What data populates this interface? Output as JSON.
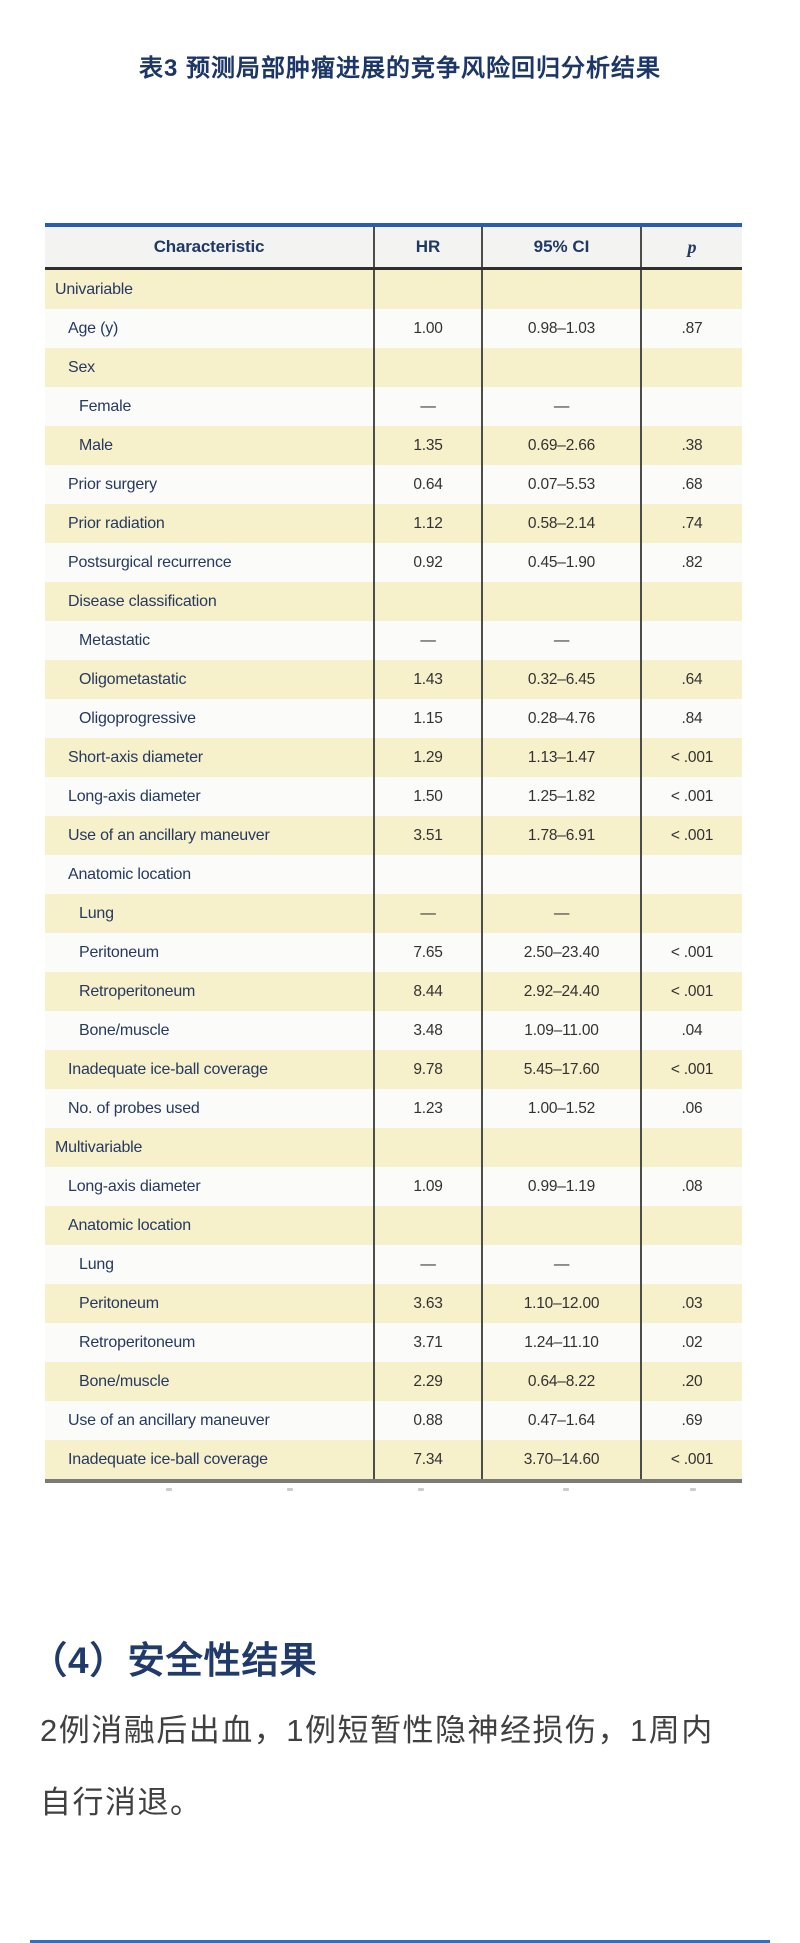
{
  "page": {
    "title": "表3 预测局部肿瘤进展的竞争风险回归分析结果"
  },
  "colors": {
    "accent_navy": "#1f3864",
    "table_top_rule": "#2a5db0",
    "row_yellow": "#f6f0cb",
    "row_white": "#fbfbf9",
    "header_bg": "#f3f3f2",
    "bottom_rule_blue": "#3a6ab8"
  },
  "table": {
    "columns": [
      "Characteristic",
      "HR",
      "95% CI",
      "p"
    ],
    "rows": [
      {
        "label": "Univariable",
        "indent": 0,
        "hr": "",
        "ci": "",
        "p": ""
      },
      {
        "label": "Age (y)",
        "indent": 1,
        "hr": "1.00",
        "ci": "0.98–1.03",
        "p": ".87"
      },
      {
        "label": "Sex",
        "indent": 1,
        "hr": "",
        "ci": "",
        "p": ""
      },
      {
        "label": "Female",
        "indent": 2,
        "hr": "—",
        "ci": "—",
        "p": ""
      },
      {
        "label": "Male",
        "indent": 2,
        "hr": "1.35",
        "ci": "0.69–2.66",
        "p": ".38"
      },
      {
        "label": "Prior surgery",
        "indent": 1,
        "hr": "0.64",
        "ci": "0.07–5.53",
        "p": ".68"
      },
      {
        "label": "Prior radiation",
        "indent": 1,
        "hr": "1.12",
        "ci": "0.58–2.14",
        "p": ".74"
      },
      {
        "label": "Postsurgical recurrence",
        "indent": 1,
        "hr": "0.92",
        "ci": "0.45–1.90",
        "p": ".82"
      },
      {
        "label": "Disease classification",
        "indent": 1,
        "hr": "",
        "ci": "",
        "p": ""
      },
      {
        "label": "Metastatic",
        "indent": 2,
        "hr": "—",
        "ci": "—",
        "p": ""
      },
      {
        "label": "Oligometastatic",
        "indent": 2,
        "hr": "1.43",
        "ci": "0.32–6.45",
        "p": ".64"
      },
      {
        "label": "Oligoprogressive",
        "indent": 2,
        "hr": "1.15",
        "ci": "0.28–4.76",
        "p": ".84"
      },
      {
        "label": "Short-axis diameter",
        "indent": 1,
        "hr": "1.29",
        "ci": "1.13–1.47",
        "p": "< .001"
      },
      {
        "label": "Long-axis diameter",
        "indent": 1,
        "hr": "1.50",
        "ci": "1.25–1.82",
        "p": "< .001"
      },
      {
        "label": "Use of an ancillary maneuver",
        "indent": 1,
        "hr": "3.51",
        "ci": "1.78–6.91",
        "p": "< .001"
      },
      {
        "label": "Anatomic location",
        "indent": 1,
        "hr": "",
        "ci": "",
        "p": ""
      },
      {
        "label": "Lung",
        "indent": 2,
        "hr": "—",
        "ci": "—",
        "p": ""
      },
      {
        "label": "Peritoneum",
        "indent": 2,
        "hr": "7.65",
        "ci": "2.50–23.40",
        "p": "< .001"
      },
      {
        "label": "Retroperitoneum",
        "indent": 2,
        "hr": "8.44",
        "ci": "2.92–24.40",
        "p": "< .001"
      },
      {
        "label": "Bone/muscle",
        "indent": 2,
        "hr": "3.48",
        "ci": "1.09–11.00",
        "p": ".04"
      },
      {
        "label": "Inadequate ice-ball coverage",
        "indent": 1,
        "hr": "9.78",
        "ci": "5.45–17.60",
        "p": "< .001"
      },
      {
        "label": "No. of probes used",
        "indent": 1,
        "hr": "1.23",
        "ci": "1.00–1.52",
        "p": ".06"
      },
      {
        "label": "Multivariable",
        "indent": 0,
        "hr": "",
        "ci": "",
        "p": ""
      },
      {
        "label": "Long-axis diameter",
        "indent": 1,
        "hr": "1.09",
        "ci": "0.99–1.19",
        "p": ".08"
      },
      {
        "label": "Anatomic location",
        "indent": 1,
        "hr": "",
        "ci": "",
        "p": ""
      },
      {
        "label": "Lung",
        "indent": 2,
        "hr": "—",
        "ci": "—",
        "p": ""
      },
      {
        "label": "Peritoneum",
        "indent": 2,
        "hr": "3.63",
        "ci": "1.10–12.00",
        "p": ".03"
      },
      {
        "label": "Retroperitoneum",
        "indent": 2,
        "hr": "3.71",
        "ci": "1.24–11.10",
        "p": ".02"
      },
      {
        "label": "Bone/muscle",
        "indent": 2,
        "hr": "2.29",
        "ci": "0.64–8.22",
        "p": ".20"
      },
      {
        "label": "Use of an ancillary maneuver",
        "indent": 1,
        "hr": "0.88",
        "ci": "0.47–1.64",
        "p": ".69"
      },
      {
        "label": "Inadequate ice-ball coverage",
        "indent": 1,
        "hr": "7.34",
        "ci": "3.70–14.60",
        "p": "< .001"
      }
    ]
  },
  "section": {
    "heading": "（4）安全性结果",
    "body_line1": "2例消融后出血，1例短暂性隐神经损伤，1周内",
    "body_line2": "自行消退。"
  }
}
